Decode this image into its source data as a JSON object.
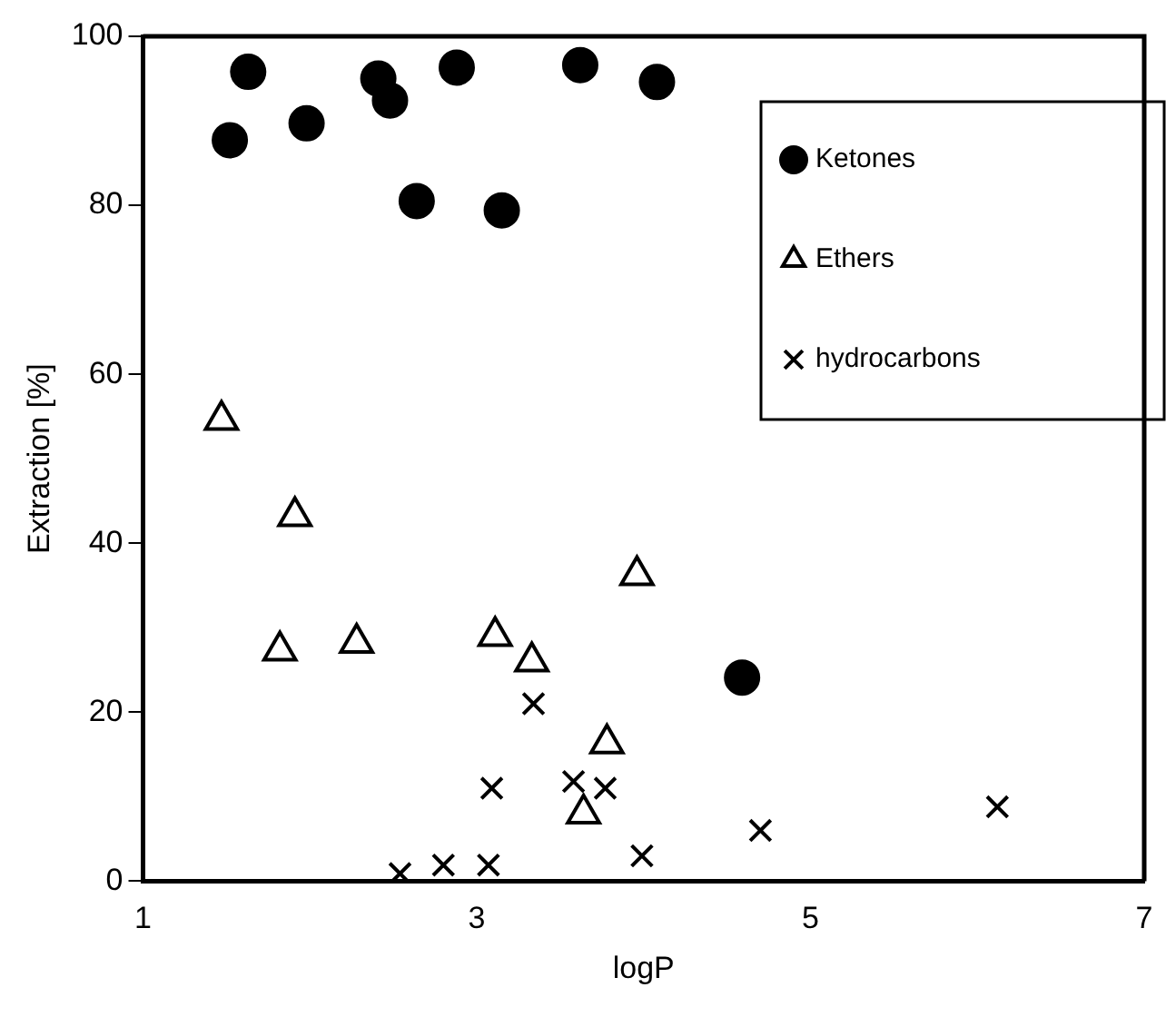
{
  "chart_data": {
    "type": "scatter",
    "xlabel": "logP",
    "ylabel": "Extraction [%]",
    "xlim": [
      1,
      7
    ],
    "xticks": [
      1,
      3,
      5,
      7
    ],
    "ylim": [
      0,
      100
    ],
    "yticks": [
      0,
      20,
      40,
      60,
      80,
      100
    ],
    "grid": false,
    "legend": "top right",
    "series": [
      {
        "name": "Ketones",
        "color": "#000000",
        "marker": "circle",
        "x": [
          1.52,
          1.63,
          1.98,
          2.41,
          2.48,
          2.64,
          2.88,
          3.15,
          3.62,
          4.08,
          4.59
        ],
        "values": [
          87.7,
          95.8,
          89.7,
          95,
          92.4,
          80.5,
          96.3,
          79.4,
          96.6,
          94.6,
          24.1
        ]
      },
      {
        "name": "Ethers",
        "color": "#000000",
        "marker": "triangle",
        "x": [
          1.47,
          1.91,
          1.82,
          2.28,
          3.11,
          3.33,
          3.78,
          3.64,
          3.96
        ],
        "values": [
          54.6,
          43.2,
          27.3,
          28.2,
          29,
          26,
          16.3,
          8,
          36.2
        ]
      },
      {
        "name": "hydrocarbons",
        "color": "#000000",
        "marker": "cross",
        "x": [
          2.54,
          2.8,
          3.07,
          3.09,
          3.34,
          3.58,
          3.77,
          3.99,
          4.7,
          6.12
        ],
        "values": [
          0.9,
          1.9,
          1.9,
          11,
          21,
          11.8,
          11,
          3,
          6,
          8.8
        ]
      }
    ]
  }
}
